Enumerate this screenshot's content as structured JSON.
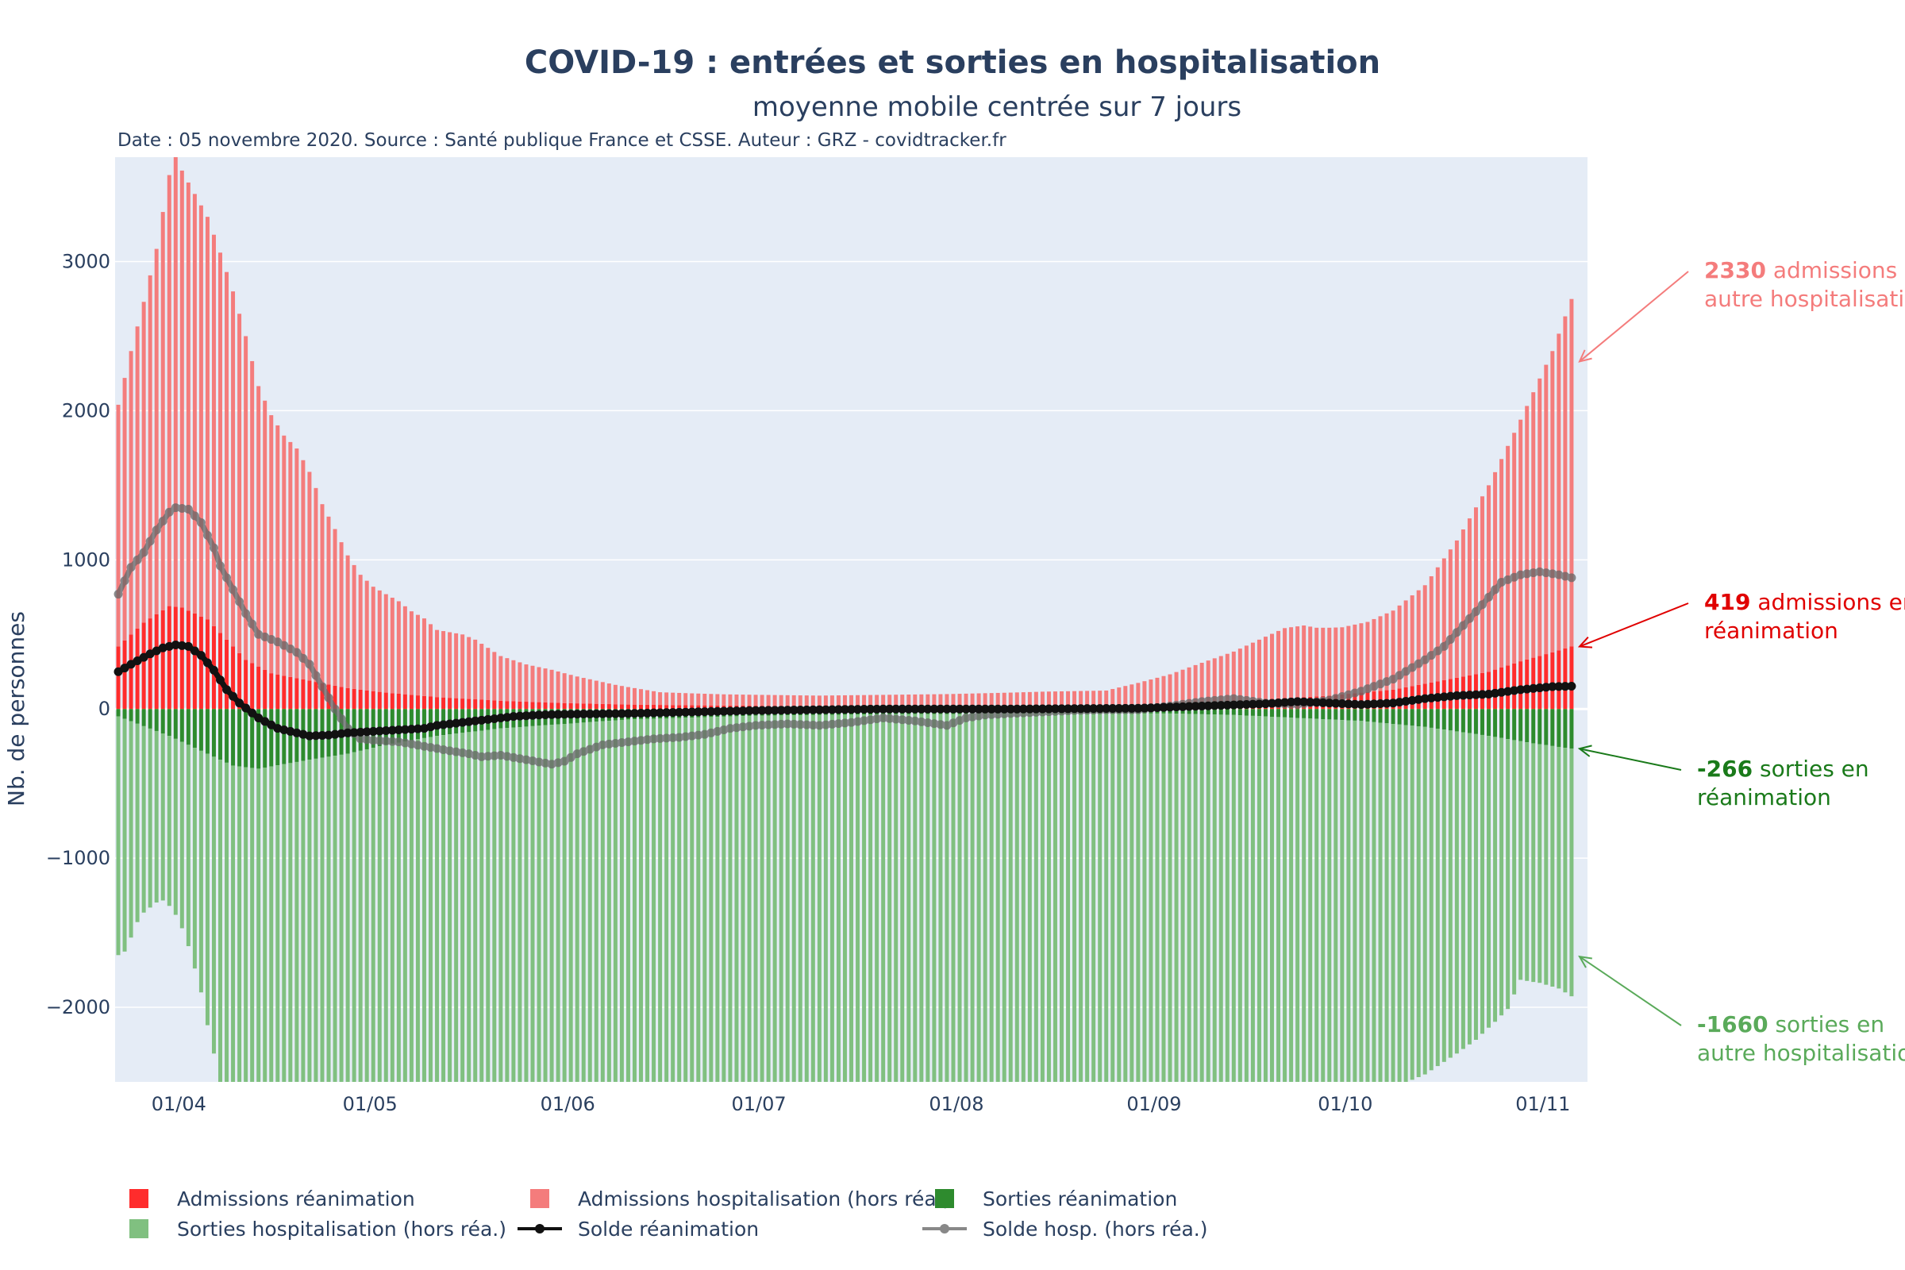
{
  "chart_data": {
    "type": "bar",
    "title": "COVID-19 : entrées et sorties en hospitalisation",
    "subtitle": "moyenne mobile centrée sur 7 jours",
    "source": "Date : 05 novembre 2020. Source : Santé publique France et CSSE. Auteur : GRZ - covidtracker.fr",
    "ylabel": "Nb. de personnes",
    "xlabel": "",
    "ylim": [
      -2500,
      3700
    ],
    "yticks": [
      3000,
      2000,
      1000,
      0,
      -1000,
      -2000
    ],
    "ytick_labels": [
      "3000",
      "2000",
      "1000",
      "0",
      "−1000",
      "−2000"
    ],
    "x_range_days": [
      0,
      231
    ],
    "xticks": [
      {
        "label": "01/04",
        "day": 10
      },
      {
        "label": "01/05",
        "day": 40
      },
      {
        "label": "01/06",
        "day": 71
      },
      {
        "label": "01/07",
        "day": 101
      },
      {
        "label": "01/08",
        "day": 132
      },
      {
        "label": "01/09",
        "day": 163
      },
      {
        "label": "01/10",
        "day": 193
      },
      {
        "label": "01/11",
        "day": 224
      }
    ],
    "colors": {
      "adm_rea": "#ff2c2c",
      "adm_hosp": "#f47c7c",
      "sort_rea": "#2e8b2e",
      "sort_hosp": "#80c080",
      "solde_rea": "#111111",
      "solde_hosp": "#666666",
      "plot_bg": "#e5ecf6",
      "grid": "#ffffff"
    },
    "series": [
      {
        "name": "Admissions réanimation",
        "day_start": 0,
        "keypoints": [
          [
            0,
            420
          ],
          [
            4,
            580
          ],
          [
            8,
            690
          ],
          [
            10,
            680
          ],
          [
            14,
            600
          ],
          [
            18,
            420
          ],
          [
            20,
            330
          ],
          [
            24,
            240
          ],
          [
            30,
            190
          ],
          [
            36,
            140
          ],
          [
            42,
            110
          ],
          [
            50,
            80
          ],
          [
            60,
            55
          ],
          [
            70,
            40
          ],
          [
            80,
            30
          ],
          [
            90,
            25
          ],
          [
            100,
            22
          ],
          [
            110,
            20
          ],
          [
            120,
            20
          ],
          [
            140,
            20
          ],
          [
            160,
            25
          ],
          [
            170,
            40
          ],
          [
            175,
            55
          ],
          [
            180,
            65
          ],
          [
            190,
            90
          ],
          [
            195,
            110
          ],
          [
            200,
            130
          ],
          [
            205,
            170
          ],
          [
            210,
            210
          ],
          [
            215,
            250
          ],
          [
            220,
            320
          ],
          [
            225,
            380
          ],
          [
            228,
            419
          ]
        ]
      },
      {
        "name": "Admissions hospitalisation (hors réa.)",
        "day_start": 0,
        "keypoints": [
          [
            0,
            1620
          ],
          [
            2,
            1900
          ],
          [
            4,
            2150
          ],
          [
            6,
            2450
          ],
          [
            8,
            2890
          ],
          [
            9,
            3060
          ],
          [
            10,
            2930
          ],
          [
            11,
            2870
          ],
          [
            14,
            2700
          ],
          [
            16,
            2550
          ],
          [
            18,
            2380
          ],
          [
            20,
            2170
          ],
          [
            22,
            1880
          ],
          [
            24,
            1730
          ],
          [
            26,
            1610
          ],
          [
            28,
            1540
          ],
          [
            30,
            1400
          ],
          [
            32,
            1200
          ],
          [
            34,
            1050
          ],
          [
            36,
            890
          ],
          [
            38,
            770
          ],
          [
            40,
            700
          ],
          [
            44,
            620
          ],
          [
            46,
            560
          ],
          [
            48,
            520
          ],
          [
            50,
            450
          ],
          [
            54,
            430
          ],
          [
            56,
            400
          ],
          [
            60,
            300
          ],
          [
            64,
            250
          ],
          [
            68,
            220
          ],
          [
            72,
            180
          ],
          [
            78,
            130
          ],
          [
            85,
            85
          ],
          [
            95,
            75
          ],
          [
            110,
            70
          ],
          [
            130,
            80
          ],
          [
            145,
            95
          ],
          [
            155,
            100
          ],
          [
            160,
            150
          ],
          [
            165,
            200
          ],
          [
            170,
            270
          ],
          [
            175,
            330
          ],
          [
            180,
            420
          ],
          [
            183,
            470
          ],
          [
            186,
            480
          ],
          [
            188,
            460
          ],
          [
            192,
            450
          ],
          [
            196,
            470
          ],
          [
            200,
            530
          ],
          [
            205,
            660
          ],
          [
            210,
            920
          ],
          [
            215,
            1250
          ],
          [
            220,
            1620
          ],
          [
            225,
            2020
          ],
          [
            228,
            2330
          ]
        ]
      },
      {
        "name": "Sorties réanimation",
        "day_start": 0,
        "keypoints": [
          [
            0,
            -50
          ],
          [
            8,
            -180
          ],
          [
            14,
            -300
          ],
          [
            18,
            -380
          ],
          [
            22,
            -400
          ],
          [
            26,
            -370
          ],
          [
            30,
            -340
          ],
          [
            36,
            -300
          ],
          [
            42,
            -240
          ],
          [
            50,
            -180
          ],
          [
            60,
            -130
          ],
          [
            70,
            -100
          ],
          [
            80,
            -70
          ],
          [
            100,
            -45
          ],
          [
            120,
            -35
          ],
          [
            150,
            -30
          ],
          [
            165,
            -30
          ],
          [
            175,
            -40
          ],
          [
            185,
            -60
          ],
          [
            195,
            -80
          ],
          [
            205,
            -120
          ],
          [
            215,
            -180
          ],
          [
            222,
            -230
          ],
          [
            228,
            -266
          ]
        ]
      },
      {
        "name": "Sorties hospitalisation (hors réa.)",
        "day_start": 0,
        "keypoints": [
          [
            0,
            -1600
          ],
          [
            1,
            -1560
          ],
          [
            2,
            -1450
          ],
          [
            3,
            -1330
          ],
          [
            4,
            -1250
          ],
          [
            5,
            -1200
          ],
          [
            6,
            -1150
          ],
          [
            7,
            -1120
          ],
          [
            8,
            -1140
          ],
          [
            9,
            -1180
          ],
          [
            10,
            -1250
          ],
          [
            11,
            -1350
          ],
          [
            12,
            -1480
          ],
          [
            13,
            -1620
          ],
          [
            14,
            -1820
          ],
          [
            15,
            -1990
          ],
          [
            16,
            -2160
          ],
          [
            17,
            -2300
          ],
          [
            18,
            -2460
          ],
          [
            20,
            -2700
          ],
          [
            24,
            -2850
          ],
          [
            30,
            -2950
          ],
          [
            40,
            -2900
          ],
          [
            60,
            -2800
          ],
          [
            100,
            -2700
          ],
          [
            150,
            -2700
          ],
          [
            180,
            -2680
          ],
          [
            190,
            -2600
          ],
          [
            195,
            -2500
          ],
          [
            200,
            -2440
          ],
          [
            205,
            -2330
          ],
          [
            210,
            -2160
          ],
          [
            213,
            -2050
          ],
          [
            216,
            -1910
          ],
          [
            218,
            -1810
          ],
          [
            220,
            -1600
          ],
          [
            223,
            -1600
          ],
          [
            226,
            -1620
          ],
          [
            228,
            -1660
          ]
        ]
      }
    ],
    "lines": [
      {
        "name": "Solde réanimation",
        "keypoints": [
          [
            0,
            250
          ],
          [
            2,
            300
          ],
          [
            5,
            370
          ],
          [
            7,
            410
          ],
          [
            9,
            430
          ],
          [
            11,
            420
          ],
          [
            13,
            360
          ],
          [
            15,
            260
          ],
          [
            17,
            130
          ],
          [
            19,
            40
          ],
          [
            22,
            -60
          ],
          [
            25,
            -130
          ],
          [
            28,
            -160
          ],
          [
            30,
            -180
          ],
          [
            33,
            -175
          ],
          [
            36,
            -160
          ],
          [
            40,
            -150
          ],
          [
            44,
            -140
          ],
          [
            48,
            -130
          ],
          [
            50,
            -110
          ],
          [
            54,
            -90
          ],
          [
            58,
            -70
          ],
          [
            62,
            -50
          ],
          [
            66,
            -40
          ],
          [
            70,
            -35
          ],
          [
            80,
            -30
          ],
          [
            90,
            -20
          ],
          [
            100,
            -10
          ],
          [
            120,
            0
          ],
          [
            140,
            0
          ],
          [
            160,
            5
          ],
          [
            170,
            20
          ],
          [
            180,
            35
          ],
          [
            185,
            50
          ],
          [
            190,
            40
          ],
          [
            195,
            30
          ],
          [
            200,
            40
          ],
          [
            205,
            70
          ],
          [
            210,
            90
          ],
          [
            215,
            100
          ],
          [
            220,
            130
          ],
          [
            225,
            150
          ],
          [
            228,
            153
          ]
        ]
      },
      {
        "name": "Solde hosp. (hors réa.)",
        "keypoints": [
          [
            0,
            770
          ],
          [
            2,
            950
          ],
          [
            4,
            1050
          ],
          [
            6,
            1200
          ],
          [
            8,
            1320
          ],
          [
            9,
            1350
          ],
          [
            11,
            1340
          ],
          [
            13,
            1250
          ],
          [
            15,
            1080
          ],
          [
            16,
            960
          ],
          [
            18,
            800
          ],
          [
            20,
            640
          ],
          [
            22,
            500
          ],
          [
            25,
            450
          ],
          [
            28,
            380
          ],
          [
            30,
            300
          ],
          [
            32,
            150
          ],
          [
            34,
            0
          ],
          [
            36,
            -130
          ],
          [
            38,
            -200
          ],
          [
            40,
            -210
          ],
          [
            44,
            -220
          ],
          [
            48,
            -250
          ],
          [
            52,
            -280
          ],
          [
            55,
            -300
          ],
          [
            57,
            -320
          ],
          [
            60,
            -310
          ],
          [
            64,
            -340
          ],
          [
            68,
            -370
          ],
          [
            70,
            -350
          ],
          [
            72,
            -300
          ],
          [
            76,
            -240
          ],
          [
            80,
            -220
          ],
          [
            84,
            -200
          ],
          [
            88,
            -190
          ],
          [
            92,
            -170
          ],
          [
            96,
            -130
          ],
          [
            100,
            -110
          ],
          [
            105,
            -100
          ],
          [
            110,
            -110
          ],
          [
            115,
            -90
          ],
          [
            120,
            -60
          ],
          [
            125,
            -80
          ],
          [
            130,
            -110
          ],
          [
            133,
            -60
          ],
          [
            136,
            -40
          ],
          [
            140,
            -30
          ],
          [
            145,
            -20
          ],
          [
            150,
            -10
          ],
          [
            155,
            -5
          ],
          [
            160,
            -5
          ],
          [
            165,
            20
          ],
          [
            170,
            50
          ],
          [
            175,
            70
          ],
          [
            180,
            40
          ],
          [
            185,
            30
          ],
          [
            190,
            60
          ],
          [
            195,
            120
          ],
          [
            200,
            200
          ],
          [
            205,
            330
          ],
          [
            208,
            420
          ],
          [
            211,
            560
          ],
          [
            214,
            700
          ],
          [
            217,
            850
          ],
          [
            220,
            900
          ],
          [
            223,
            920
          ],
          [
            226,
            900
          ],
          [
            228,
            880
          ]
        ]
      }
    ],
    "annotations": [
      {
        "value": "2330",
        "line1": " admissions en",
        "line2": "autre hospitalisation",
        "color": "#f47c7c",
        "target": 2330
      },
      {
        "value": "419",
        "line1": " admissions en",
        "line2": " réanimation",
        "color": "#e00000",
        "target": 419
      },
      {
        "value": "-266",
        "line1": " sorties en",
        "line2": " réanimation",
        "color": "#1a7a1a",
        "target": -266
      },
      {
        "value": "-1660",
        "line1": " sorties en",
        "line2": "autre hospitalisation",
        "color": "#5aaa5a",
        "target": -1660
      }
    ],
    "legend": {
      "position": "bottom",
      "items": [
        {
          "label": "Admissions réanimation",
          "kind": "bar",
          "color": "#ff2c2c"
        },
        {
          "label": "Admissions hospitalisation (hors réa.)",
          "kind": "bar",
          "color": "#f47c7c"
        },
        {
          "label": "Sorties réanimation",
          "kind": "bar",
          "color": "#2e8b2e"
        },
        {
          "label": "Sorties hospitalisation (hors réa.)",
          "kind": "bar",
          "color": "#80c080"
        },
        {
          "label": "Solde réanimation",
          "kind": "line",
          "color": "#111111"
        },
        {
          "label": "Solde hosp. (hors réa.)",
          "kind": "line",
          "color": "#888888"
        }
      ]
    }
  }
}
